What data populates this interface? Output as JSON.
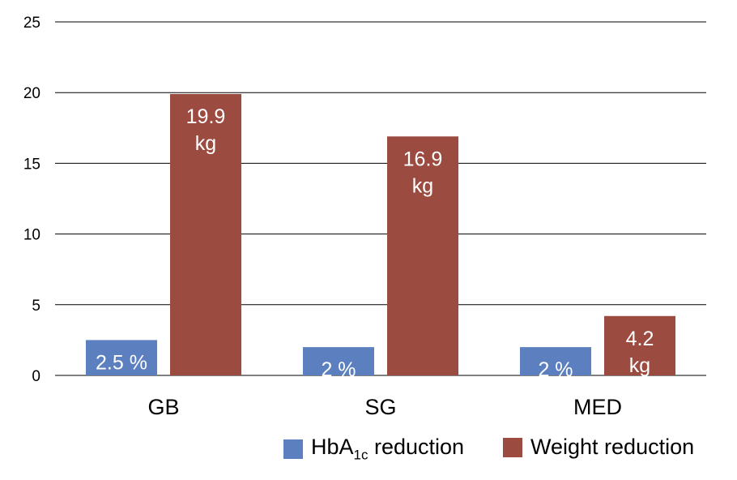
{
  "chart_data": {
    "type": "bar",
    "categories": [
      "GB",
      "SG",
      "MED"
    ],
    "series": [
      {
        "name": "HbA1c reduction",
        "name_main": "HbA",
        "name_sub": "1c",
        "name_rest": " reduction",
        "color": "#5b7fbf",
        "values": [
          2.5,
          2,
          2
        ],
        "labels": [
          [
            "2.5 %"
          ],
          [
            "2 %"
          ],
          [
            "2 %"
          ]
        ]
      },
      {
        "name": "Weight reduction",
        "color": "#9c4b40",
        "values": [
          19.9,
          16.9,
          4.2
        ],
        "labels": [
          [
            "19.9",
            "kg"
          ],
          [
            "16.9",
            "kg"
          ],
          [
            "4.2",
            "kg"
          ]
        ]
      }
    ],
    "y_ticks": [
      "0",
      "5",
      "10",
      "15",
      "20",
      "25"
    ],
    "ylim": [
      0,
      25
    ],
    "grid": true,
    "legend_position": "bottom-right",
    "title": "",
    "xlabel": "",
    "ylabel": ""
  }
}
